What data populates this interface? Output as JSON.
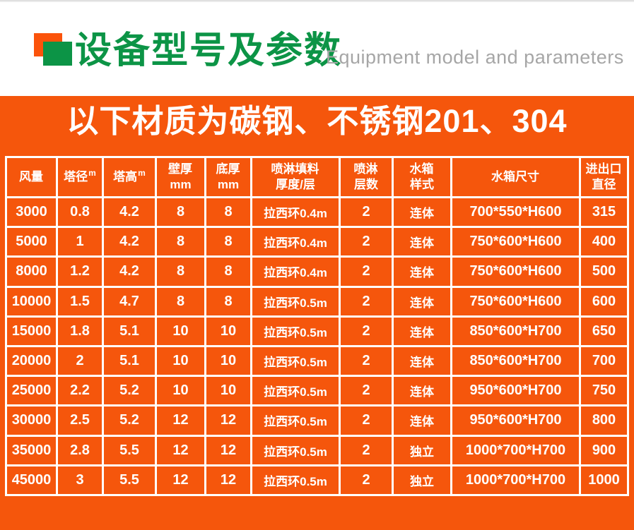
{
  "header": {
    "title_cn": "设备型号及参数",
    "title_en": "Equipment model and parameters"
  },
  "banner": {
    "text": "以下材质为碳钢、不锈钢201、304"
  },
  "colors": {
    "section_orange": "#F5560C",
    "logo_orange": "#FB530B",
    "brand_green": "#0C9446",
    "subtitle_gray": "#A6A6A6",
    "table_grid_line": "#FFFFFF",
    "table_text": "#FFFFFF"
  },
  "table": {
    "headers": [
      {
        "line1": "风量"
      },
      {
        "line1": "塔径",
        "sup": "m"
      },
      {
        "line1": "塔高",
        "sup": "m"
      },
      {
        "line1": "壁厚",
        "line2": "mm"
      },
      {
        "line1": "底厚",
        "line2": "mm"
      },
      {
        "line1": "喷淋填料",
        "line2": "厚度/层"
      },
      {
        "line1": "喷淋",
        "line2": "层数"
      },
      {
        "line1": "水箱",
        "line2": "样式"
      },
      {
        "line1": "水箱尺寸"
      },
      {
        "line1": "进出口",
        "line2": "直径"
      }
    ],
    "rows": [
      [
        "3000",
        "0.8",
        "4.2",
        "8",
        "8",
        "拉西环0.4m",
        "2",
        "连体",
        "700*550*H600",
        "315"
      ],
      [
        "5000",
        "1",
        "4.2",
        "8",
        "8",
        "拉西环0.4m",
        "2",
        "连体",
        "750*600*H600",
        "400"
      ],
      [
        "8000",
        "1.2",
        "4.2",
        "8",
        "8",
        "拉西环0.4m",
        "2",
        "连体",
        "750*600*H600",
        "500"
      ],
      [
        "10000",
        "1.5",
        "4.7",
        "8",
        "8",
        "拉西环0.5m",
        "2",
        "连体",
        "750*600*H600",
        "600"
      ],
      [
        "15000",
        "1.8",
        "5.1",
        "10",
        "10",
        "拉西环0.5m",
        "2",
        "连体",
        "850*600*H700",
        "650"
      ],
      [
        "20000",
        "2",
        "5.1",
        "10",
        "10",
        "拉西环0.5m",
        "2",
        "连体",
        "850*600*H700",
        "700"
      ],
      [
        "25000",
        "2.2",
        "5.2",
        "10",
        "10",
        "拉西环0.5m",
        "2",
        "连体",
        "950*600*H700",
        "750"
      ],
      [
        "30000",
        "2.5",
        "5.2",
        "12",
        "12",
        "拉西环0.5m",
        "2",
        "连体",
        "950*600*H700",
        "800"
      ],
      [
        "35000",
        "2.8",
        "5.5",
        "12",
        "12",
        "拉西环0.5m",
        "2",
        "独立",
        "1000*700*H700",
        "900"
      ],
      [
        "45000",
        "3",
        "5.5",
        "12",
        "12",
        "拉西环0.5m",
        "2",
        "独立",
        "1000*700*H700",
        "1000"
      ]
    ]
  }
}
